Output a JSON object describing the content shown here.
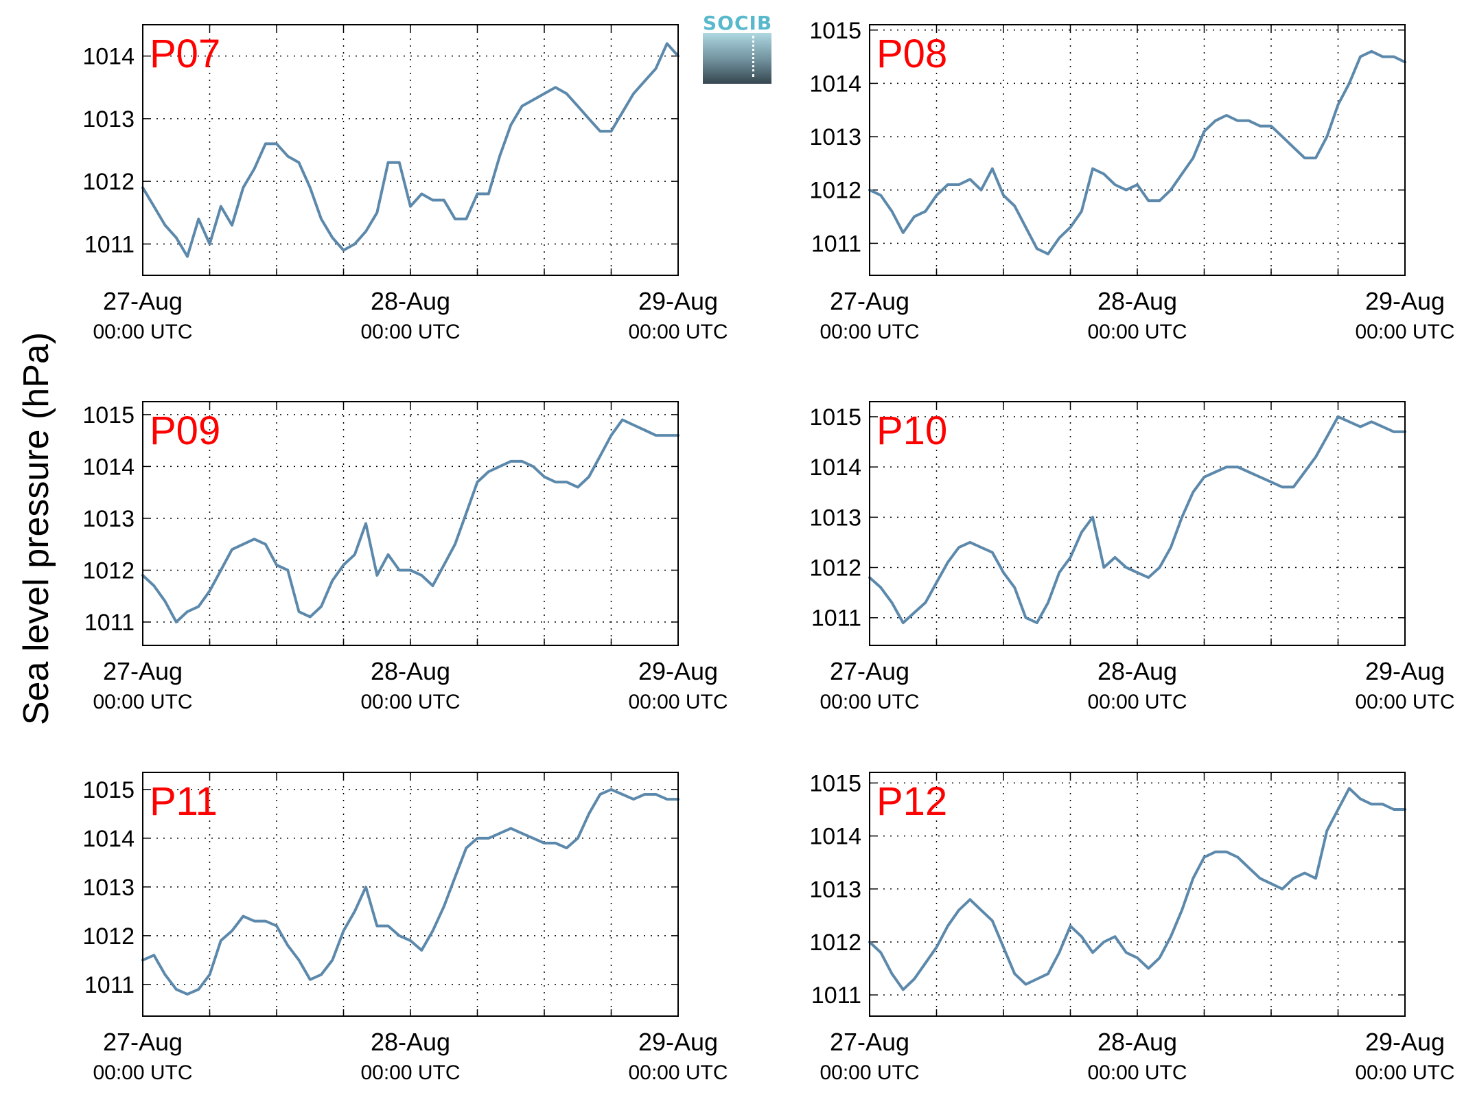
{
  "figure": {
    "ylabel": "Sea level pressure (hPa)",
    "logo_text": "SOCIB"
  },
  "colors": {
    "series": "#5c89ab",
    "panel_label": "#ff0000",
    "grid": "#000000"
  },
  "chart_data": [
    {
      "type": "line",
      "panel": "P07",
      "x_range": [
        "27-Aug 00:00 UTC",
        "29-Aug 00:00 UTC"
      ],
      "xticks": [
        {
          "date": "27-Aug",
          "time": "00:00 UTC"
        },
        {
          "date": "28-Aug",
          "time": "00:00 UTC"
        },
        {
          "date": "29-Aug",
          "time": "00:00 UTC"
        }
      ],
      "x_gridlines_every_hours": 6,
      "ylim": [
        1010.5,
        1014.5
      ],
      "yticks": [
        1011,
        1012,
        1013,
        1014
      ],
      "grid": true,
      "series": [
        {
          "x_hours": [
            0,
            1,
            2,
            3,
            4,
            5,
            6,
            7,
            8,
            9,
            10,
            11,
            12,
            13,
            14,
            15,
            16,
            17,
            18,
            19,
            20,
            21,
            22,
            23,
            24,
            25,
            26,
            27,
            28,
            29,
            30,
            31,
            32,
            33,
            34,
            35,
            36,
            37,
            38,
            39,
            40,
            41,
            42,
            43,
            44,
            45,
            46,
            47,
            48
          ],
          "values": [
            1011.9,
            1011.6,
            1011.3,
            1011.1,
            1010.8,
            1011.4,
            1011.0,
            1011.6,
            1011.3,
            1011.9,
            1012.2,
            1012.6,
            1012.6,
            1012.4,
            1012.3,
            1011.9,
            1011.4,
            1011.1,
            1010.9,
            1011.0,
            1011.2,
            1011.5,
            1012.3,
            1012.3,
            1011.6,
            1011.8,
            1011.7,
            1011.7,
            1011.4,
            1011.4,
            1011.8,
            1011.8,
            1012.4,
            1012.9,
            1013.2,
            1013.3,
            1013.4,
            1013.5,
            1013.4,
            1013.2,
            1013.0,
            1012.8,
            1012.8,
            1013.1,
            1013.4,
            1013.6,
            1013.8,
            1014.2,
            1014.0
          ]
        }
      ]
    },
    {
      "type": "line",
      "panel": "P08",
      "x_range": [
        "27-Aug 00:00 UTC",
        "29-Aug 00:00 UTC"
      ],
      "xticks": [
        {
          "date": "27-Aug",
          "time": "00:00 UTC"
        },
        {
          "date": "28-Aug",
          "time": "00:00 UTC"
        },
        {
          "date": "29-Aug",
          "time": "00:00 UTC"
        }
      ],
      "x_gridlines_every_hours": 6,
      "ylim": [
        1010.4,
        1015.1
      ],
      "yticks": [
        1011,
        1012,
        1013,
        1014,
        1015
      ],
      "grid": true,
      "series": [
        {
          "x_hours": [
            0,
            1,
            2,
            3,
            4,
            5,
            6,
            7,
            8,
            9,
            10,
            11,
            12,
            13,
            14,
            15,
            16,
            17,
            18,
            19,
            20,
            21,
            22,
            23,
            24,
            25,
            26,
            27,
            28,
            29,
            30,
            31,
            32,
            33,
            34,
            35,
            36,
            37,
            38,
            39,
            40,
            41,
            42,
            43,
            44,
            45,
            46,
            47,
            48
          ],
          "values": [
            1012.0,
            1011.9,
            1011.6,
            1011.2,
            1011.5,
            1011.6,
            1011.9,
            1012.1,
            1012.1,
            1012.2,
            1012.0,
            1012.4,
            1011.9,
            1011.7,
            1011.3,
            1010.9,
            1010.8,
            1011.1,
            1011.3,
            1011.6,
            1012.4,
            1012.3,
            1012.1,
            1012.0,
            1012.1,
            1011.8,
            1011.8,
            1012.0,
            1012.3,
            1012.6,
            1013.1,
            1013.3,
            1013.4,
            1013.3,
            1013.3,
            1013.2,
            1013.2,
            1013.0,
            1012.8,
            1012.6,
            1012.6,
            1013.0,
            1013.6,
            1014.0,
            1014.5,
            1014.6,
            1014.5,
            1014.5,
            1014.4
          ]
        }
      ]
    },
    {
      "type": "line",
      "panel": "P09",
      "x_range": [
        "27-Aug 00:00 UTC",
        "29-Aug 00:00 UTC"
      ],
      "xticks": [
        {
          "date": "27-Aug",
          "time": "00:00 UTC"
        },
        {
          "date": "28-Aug",
          "time": "00:00 UTC"
        },
        {
          "date": "29-Aug",
          "time": "00:00 UTC"
        }
      ],
      "x_gridlines_every_hours": 6,
      "ylim": [
        1010.55,
        1015.25
      ],
      "yticks": [
        1011,
        1012,
        1013,
        1014,
        1015
      ],
      "grid": true,
      "series": [
        {
          "x_hours": [
            0,
            1,
            2,
            3,
            4,
            5,
            6,
            7,
            8,
            9,
            10,
            11,
            12,
            13,
            14,
            15,
            16,
            17,
            18,
            19,
            20,
            21,
            22,
            23,
            24,
            25,
            26,
            27,
            28,
            29,
            30,
            31,
            32,
            33,
            34,
            35,
            36,
            37,
            38,
            39,
            40,
            41,
            42,
            43,
            44,
            45,
            46,
            47,
            48
          ],
          "values": [
            1011.9,
            1011.7,
            1011.4,
            1011.0,
            1011.2,
            1011.3,
            1011.6,
            1012.0,
            1012.4,
            1012.5,
            1012.6,
            1012.5,
            1012.1,
            1012.0,
            1011.2,
            1011.1,
            1011.3,
            1011.8,
            1012.1,
            1012.3,
            1012.9,
            1011.9,
            1012.3,
            1012.0,
            1012.0,
            1011.9,
            1011.7,
            1012.1,
            1012.5,
            1013.1,
            1013.7,
            1013.9,
            1014.0,
            1014.1,
            1014.1,
            1014.0,
            1013.8,
            1013.7,
            1013.7,
            1013.6,
            1013.8,
            1014.2,
            1014.6,
            1014.9,
            1014.8,
            1014.7,
            1014.6,
            1014.6,
            1014.6
          ]
        }
      ]
    },
    {
      "type": "line",
      "panel": "P10",
      "x_range": [
        "27-Aug 00:00 UTC",
        "29-Aug 00:00 UTC"
      ],
      "xticks": [
        {
          "date": "27-Aug",
          "time": "00:00 UTC"
        },
        {
          "date": "28-Aug",
          "time": "00:00 UTC"
        },
        {
          "date": "29-Aug",
          "time": "00:00 UTC"
        }
      ],
      "x_gridlines_every_hours": 6,
      "ylim": [
        1010.45,
        1015.3
      ],
      "yticks": [
        1011,
        1012,
        1013,
        1014,
        1015
      ],
      "grid": true,
      "series": [
        {
          "x_hours": [
            0,
            1,
            2,
            3,
            4,
            5,
            6,
            7,
            8,
            9,
            10,
            11,
            12,
            13,
            14,
            15,
            16,
            17,
            18,
            19,
            20,
            21,
            22,
            23,
            24,
            25,
            26,
            27,
            28,
            29,
            30,
            31,
            32,
            33,
            34,
            35,
            36,
            37,
            38,
            39,
            40,
            41,
            42,
            43,
            44,
            45,
            46,
            47,
            48
          ],
          "values": [
            1011.8,
            1011.6,
            1011.3,
            1010.9,
            1011.1,
            1011.3,
            1011.7,
            1012.1,
            1012.4,
            1012.5,
            1012.4,
            1012.3,
            1011.9,
            1011.6,
            1011.0,
            1010.9,
            1011.3,
            1011.9,
            1012.2,
            1012.7,
            1013.0,
            1012.0,
            1012.2,
            1012.0,
            1011.9,
            1011.8,
            1012.0,
            1012.4,
            1013.0,
            1013.5,
            1013.8,
            1013.9,
            1014.0,
            1014.0,
            1013.9,
            1013.8,
            1013.7,
            1013.6,
            1013.6,
            1013.9,
            1014.2,
            1014.6,
            1015.0,
            1014.9,
            1014.8,
            1014.9,
            1014.8,
            1014.7,
            1014.7
          ]
        }
      ]
    },
    {
      "type": "line",
      "panel": "P11",
      "x_range": [
        "27-Aug 00:00 UTC",
        "29-Aug 00:00 UTC"
      ],
      "xticks": [
        {
          "date": "27-Aug",
          "time": "00:00 UTC"
        },
        {
          "date": "28-Aug",
          "time": "00:00 UTC"
        },
        {
          "date": "29-Aug",
          "time": "00:00 UTC"
        }
      ],
      "x_gridlines_every_hours": 6,
      "ylim": [
        1010.35,
        1015.35
      ],
      "yticks": [
        1011,
        1012,
        1013,
        1014,
        1015
      ],
      "grid": true,
      "series": [
        {
          "x_hours": [
            0,
            1,
            2,
            3,
            4,
            5,
            6,
            7,
            8,
            9,
            10,
            11,
            12,
            13,
            14,
            15,
            16,
            17,
            18,
            19,
            20,
            21,
            22,
            23,
            24,
            25,
            26,
            27,
            28,
            29,
            30,
            31,
            32,
            33,
            34,
            35,
            36,
            37,
            38,
            39,
            40,
            41,
            42,
            43,
            44,
            45,
            46,
            47,
            48
          ],
          "values": [
            1011.5,
            1011.6,
            1011.2,
            1010.9,
            1010.8,
            1010.9,
            1011.2,
            1011.9,
            1012.1,
            1012.4,
            1012.3,
            1012.3,
            1012.2,
            1011.8,
            1011.5,
            1011.1,
            1011.2,
            1011.5,
            1012.1,
            1012.5,
            1013.0,
            1012.2,
            1012.2,
            1012.0,
            1011.9,
            1011.7,
            1012.1,
            1012.6,
            1013.2,
            1013.8,
            1014.0,
            1014.0,
            1014.1,
            1014.2,
            1014.1,
            1014.0,
            1013.9,
            1013.9,
            1013.8,
            1014.0,
            1014.5,
            1014.9,
            1015.0,
            1014.9,
            1014.8,
            1014.9,
            1014.9,
            1014.8,
            1014.8
          ]
        }
      ]
    },
    {
      "type": "line",
      "panel": "P12",
      "x_range": [
        "27-Aug 00:00 UTC",
        "29-Aug 00:00 UTC"
      ],
      "xticks": [
        {
          "date": "27-Aug",
          "time": "00:00 UTC"
        },
        {
          "date": "28-Aug",
          "time": "00:00 UTC"
        },
        {
          "date": "29-Aug",
          "time": "00:00 UTC"
        }
      ],
      "x_gridlines_every_hours": 6,
      "ylim": [
        1010.6,
        1015.2
      ],
      "yticks": [
        1011,
        1012,
        1013,
        1014,
        1015
      ],
      "grid": true,
      "series": [
        {
          "x_hours": [
            0,
            1,
            2,
            3,
            4,
            5,
            6,
            7,
            8,
            9,
            10,
            11,
            12,
            13,
            14,
            15,
            16,
            17,
            18,
            19,
            20,
            21,
            22,
            23,
            24,
            25,
            26,
            27,
            28,
            29,
            30,
            31,
            32,
            33,
            34,
            35,
            36,
            37,
            38,
            39,
            40,
            41,
            42,
            43,
            44,
            45,
            46,
            47,
            48
          ],
          "values": [
            1012.0,
            1011.8,
            1011.4,
            1011.1,
            1011.3,
            1011.6,
            1011.9,
            1012.3,
            1012.6,
            1012.8,
            1012.6,
            1012.4,
            1011.9,
            1011.4,
            1011.2,
            1011.3,
            1011.4,
            1011.8,
            1012.3,
            1012.1,
            1011.8,
            1012.0,
            1012.1,
            1011.8,
            1011.7,
            1011.5,
            1011.7,
            1012.1,
            1012.6,
            1013.2,
            1013.6,
            1013.7,
            1013.7,
            1013.6,
            1013.4,
            1013.2,
            1013.1,
            1013.0,
            1013.2,
            1013.3,
            1013.2,
            1014.1,
            1014.5,
            1014.9,
            1014.7,
            1014.6,
            1014.6,
            1014.5,
            1014.5
          ]
        }
      ]
    }
  ]
}
